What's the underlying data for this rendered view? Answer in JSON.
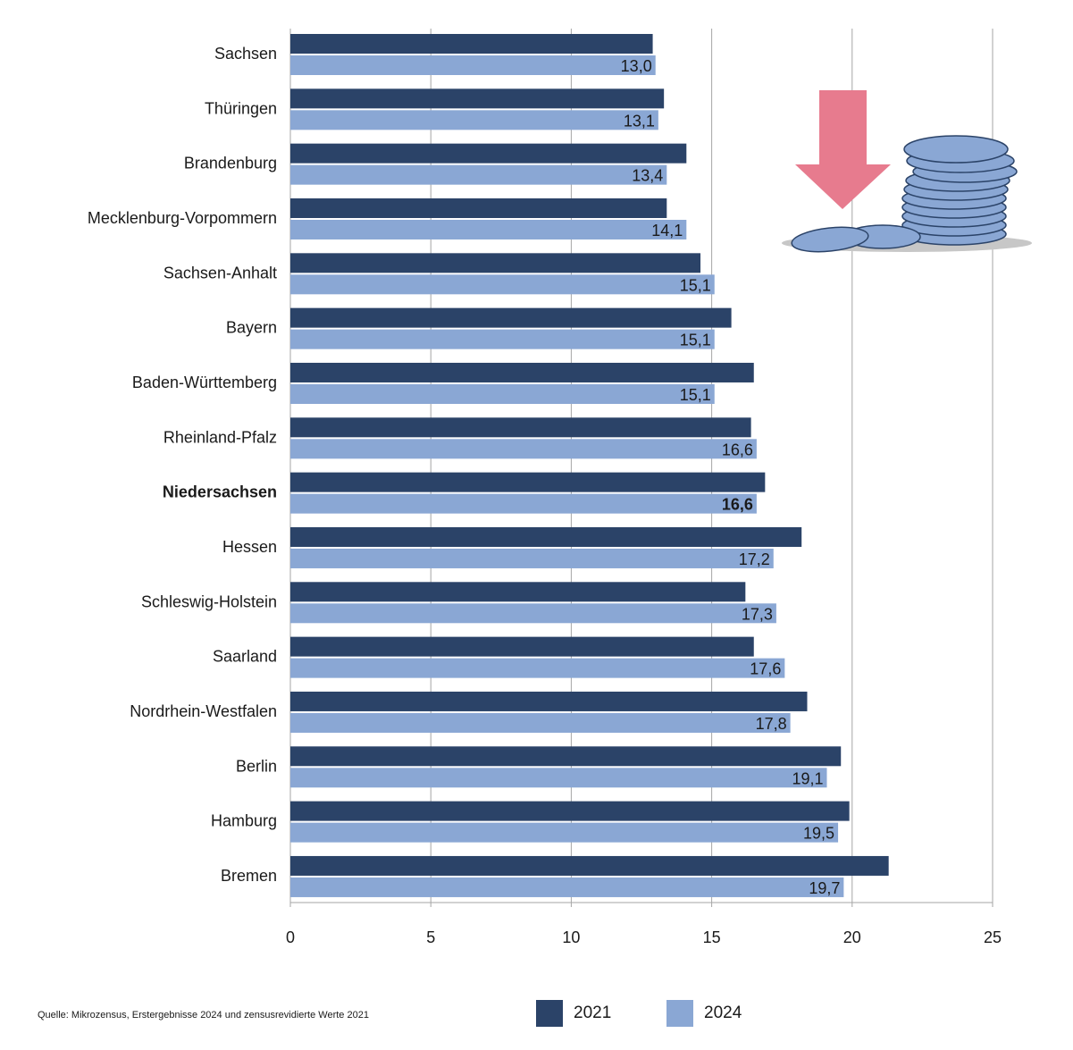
{
  "chart_data": {
    "type": "bar",
    "orientation": "horizontal",
    "title": "",
    "xlabel": "",
    "ylabel": "",
    "xlim": [
      0,
      25
    ],
    "xticks": [
      0,
      5,
      10,
      15,
      20,
      25
    ],
    "grid": true,
    "legend_position": "bottom",
    "categories": [
      "Sachsen",
      "Thüringen",
      "Brandenburg",
      "Mecklenburg-Vorpommern",
      "Sachsen-Anhalt",
      "Bayern",
      "Baden-Württemberg",
      "Rheinland-Pfalz",
      "Niedersachsen",
      "Hessen",
      "Schleswig-Holstein",
      "Saarland",
      "Nordrhein-Westfalen",
      "Berlin",
      "Hamburg",
      "Bremen"
    ],
    "highlight_category": "Niedersachsen",
    "series": [
      {
        "name": "2021",
        "color": "#2b4368",
        "values": [
          12.9,
          13.3,
          14.1,
          13.4,
          14.6,
          15.7,
          16.5,
          16.4,
          16.9,
          18.2,
          16.2,
          16.5,
          18.4,
          19.6,
          19.9,
          21.3
        ]
      },
      {
        "name": "2024",
        "color": "#8aa7d4",
        "values": [
          13.0,
          13.1,
          13.4,
          14.1,
          15.1,
          15.1,
          15.1,
          16.6,
          16.6,
          17.2,
          17.3,
          17.6,
          17.8,
          19.1,
          19.5,
          19.7
        ]
      }
    ],
    "data_labels": {
      "series": "2024",
      "labels": [
        "13,0",
        "13,1",
        "13,4",
        "14,1",
        "15,1",
        "15,1",
        "15,1",
        "16,6",
        "16,6",
        "17,2",
        "17,3",
        "17,6",
        "17,8",
        "19,1",
        "19,5",
        "19,7"
      ]
    }
  },
  "source": "Quelle: Mikrozensus, Erstergebnisse 2024 und zensusrevidierte Werte 2021",
  "legend": {
    "item_2021": "2021",
    "item_2024": "2024"
  },
  "decoration": {
    "icon": "coins-stack-with-down-arrow-icon",
    "arrow_color": "#e77b8e",
    "coin_color": "#8aa7d4"
  }
}
